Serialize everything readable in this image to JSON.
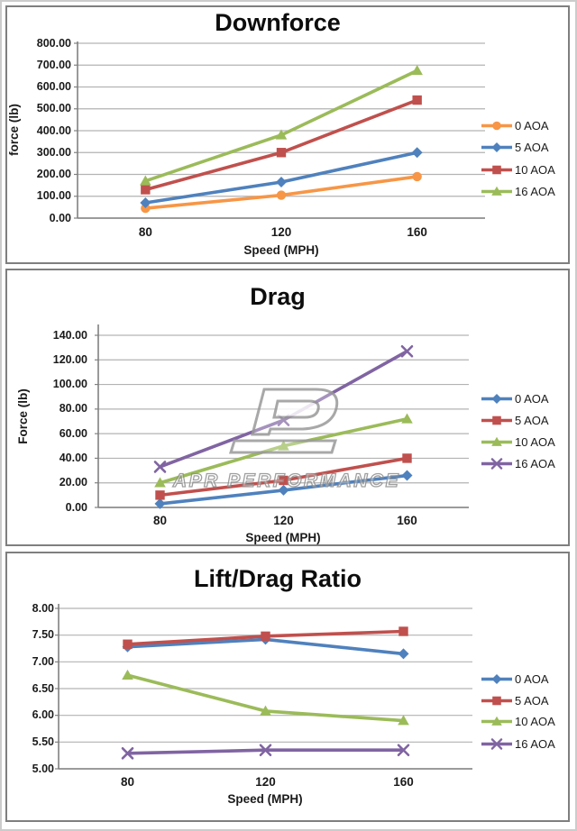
{
  "page": {
    "background": "#ffffff",
    "panel_border_color": "#7f7f7f",
    "grid_color": "#b3b3b3",
    "axis_color": "#808080"
  },
  "watermark": {
    "text": "APR PERFORMANCE",
    "logo": "apr-logo"
  },
  "chart_data": [
    {
      "type": "line",
      "title": "Downforce",
      "ylabel": "force (lb)",
      "xlabel": "Speed (MPH)",
      "categories": [
        "80",
        "120",
        "160"
      ],
      "y_ticks": [
        "800.00",
        "700.00",
        "600.00",
        "500.00",
        "400.00",
        "300.00",
        "200.00",
        "100.00",
        "0.00"
      ],
      "ylim": [
        0,
        800
      ],
      "grid": true,
      "legend_position": "right",
      "series": [
        {
          "name": "0 AOA",
          "color": "#F79646",
          "marker": "circle",
          "values": [
            45,
            105,
            190
          ]
        },
        {
          "name": "5 AOA",
          "color": "#4F81BD",
          "marker": "diamond",
          "values": [
            70,
            165,
            300
          ]
        },
        {
          "name": "10 AOA",
          "color": "#C0504D",
          "marker": "square",
          "values": [
            130,
            300,
            540
          ]
        },
        {
          "name": "16 AOA",
          "color": "#9BBB59",
          "marker": "triangle",
          "values": [
            170,
            380,
            675
          ]
        }
      ]
    },
    {
      "type": "line",
      "title": "Drag",
      "ylabel": "Force (lb)",
      "xlabel": "Speed (MPH)",
      "categories": [
        "80",
        "120",
        "160"
      ],
      "y_ticks": [
        "140.00",
        "120.00",
        "100.00",
        "80.00",
        "60.00",
        "40.00",
        "20.00",
        "0.00"
      ],
      "ylim": [
        0,
        140
      ],
      "grid": true,
      "legend_position": "right",
      "series": [
        {
          "name": "0 AOA",
          "color": "#4F81BD",
          "marker": "diamond",
          "values": [
            3,
            14,
            26
          ]
        },
        {
          "name": "5 AOA",
          "color": "#C0504D",
          "marker": "square",
          "values": [
            10,
            22,
            40
          ]
        },
        {
          "name": "10 AOA",
          "color": "#9BBB59",
          "marker": "triangle",
          "values": [
            20,
            50,
            72
          ]
        },
        {
          "name": "16 AOA",
          "color": "#8064A2",
          "marker": "x",
          "values": [
            33,
            71,
            127
          ]
        }
      ]
    },
    {
      "type": "line",
      "title": "Lift/Drag Ratio",
      "ylabel": "",
      "xlabel": "Speed (MPH)",
      "categories": [
        "80",
        "120",
        "160"
      ],
      "y_ticks": [
        "8.00",
        "7.50",
        "7.00",
        "6.50",
        "6.00",
        "5.50",
        "5.00"
      ],
      "ylim": [
        5,
        8
      ],
      "grid": true,
      "legend_position": "right",
      "series": [
        {
          "name": "0 AOA",
          "color": "#4F81BD",
          "marker": "diamond",
          "values": [
            7.28,
            7.42,
            7.15
          ]
        },
        {
          "name": "5 AOA",
          "color": "#C0504D",
          "marker": "square",
          "values": [
            7.33,
            7.48,
            7.57
          ]
        },
        {
          "name": "10 AOA",
          "color": "#9BBB59",
          "marker": "triangle",
          "values": [
            6.75,
            6.08,
            5.9
          ]
        },
        {
          "name": "16 AOA",
          "color": "#8064A2",
          "marker": "x",
          "values": [
            5.29,
            5.35,
            5.35
          ]
        }
      ]
    }
  ]
}
